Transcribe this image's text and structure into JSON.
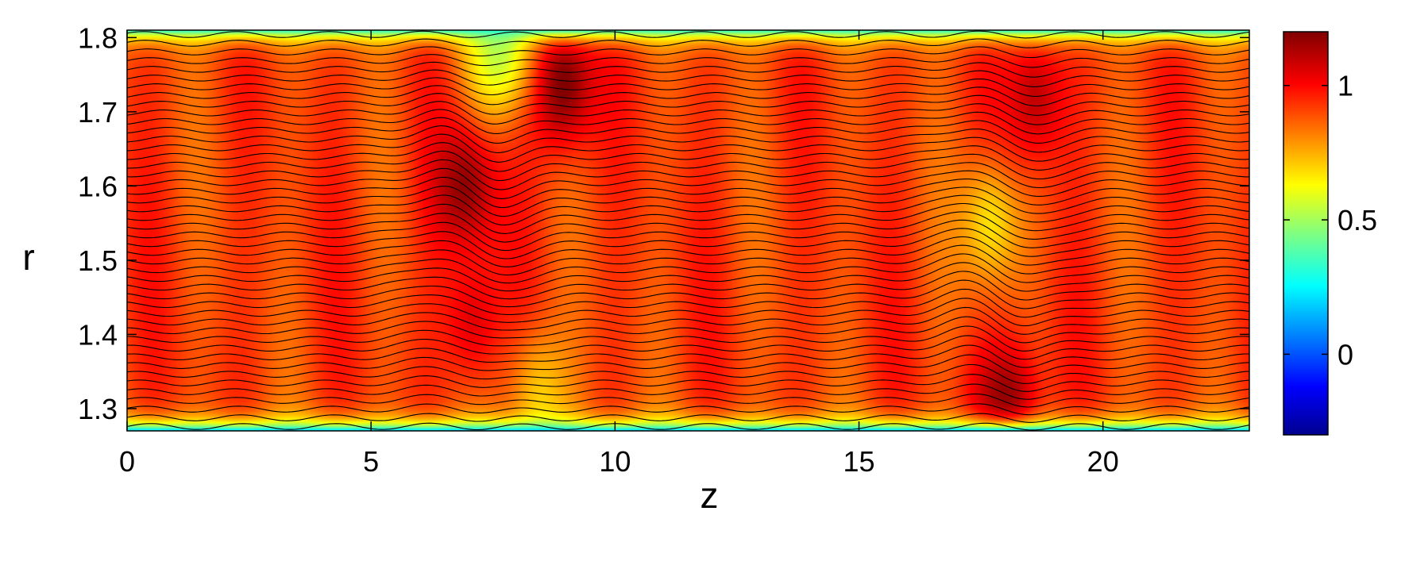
{
  "chart_data": {
    "type": "heatmap",
    "title": "",
    "xlabel": "z",
    "ylabel": "r",
    "xlim": [
      0,
      23
    ],
    "ylim": [
      1.27,
      1.81
    ],
    "x_ticks": [
      0,
      5,
      10,
      15,
      20
    ],
    "x_tick_labels": [
      "0",
      "5",
      "10",
      "15",
      "20"
    ],
    "y_ticks": [
      1.3,
      1.4,
      1.5,
      1.6,
      1.7,
      1.8
    ],
    "y_tick_labels": [
      "1.3",
      "1.4",
      "1.5",
      "1.6",
      "1.7",
      "1.8"
    ],
    "colorbar": {
      "range": [
        -0.3,
        1.2
      ],
      "ticks": [
        0,
        0.5,
        1
      ],
      "tick_labels": [
        "0",
        "0.5",
        "1"
      ],
      "colormap": "jet"
    },
    "field": {
      "background_value": 0.92,
      "wall_value": 0.3,
      "wall_value_inner": 0.15,
      "features": [
        {
          "z": 6.9,
          "r": 1.6,
          "value": 1.18
        },
        {
          "z": 8.9,
          "r": 1.74,
          "value": 1.22
        },
        {
          "z": 7.1,
          "r": 1.42,
          "value": 1.05
        },
        {
          "z": 7.6,
          "r": 1.78,
          "value": 0.55
        },
        {
          "z": 8.5,
          "r": 1.32,
          "value": 0.72
        },
        {
          "z": 18.0,
          "r": 1.3,
          "value": 1.2
        },
        {
          "z": 17.7,
          "r": 1.55,
          "value": 0.68
        },
        {
          "z": 18.6,
          "r": 1.72,
          "value": 1.1
        }
      ]
    },
    "contour_lines": {
      "count": 46,
      "color": "#000000",
      "disturbances": [
        {
          "z": 7.0,
          "amplitude": 0.045
        },
        {
          "z": 17.9,
          "amplitude": 0.05
        }
      ]
    }
  }
}
